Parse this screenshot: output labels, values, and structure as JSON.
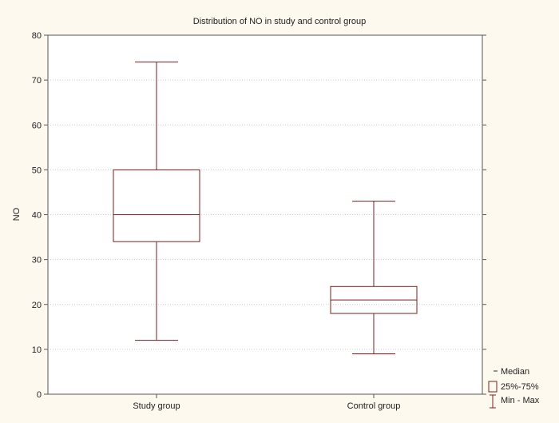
{
  "chart_data": {
    "type": "boxplot",
    "title": "Distribution of NO in study and control group",
    "xlabel": "",
    "ylabel": "NO",
    "ylim": [
      0,
      80
    ],
    "yticks": [
      0,
      10,
      20,
      30,
      40,
      50,
      60,
      70,
      80
    ],
    "categories": [
      "Study group",
      "Control group"
    ],
    "boxes": [
      {
        "category": "Study group",
        "min": 12,
        "q1": 34,
        "median": 40,
        "q3": 50,
        "max": 74
      },
      {
        "category": "Control group",
        "min": 9,
        "q1": 18,
        "median": 21,
        "q3": 24,
        "max": 43
      }
    ],
    "legend": {
      "position": "bottom-right",
      "items": [
        {
          "symbol": "median",
          "label": "Median"
        },
        {
          "symbol": "box",
          "label": "25%-75%"
        },
        {
          "symbol": "whisker",
          "label": "Min - Max"
        }
      ]
    },
    "colors": {
      "box_stroke": "#7a1f1f",
      "background": "#fdf9ef",
      "plot_background": "#ffffff",
      "grid": "#cccccc"
    },
    "grid": true
  }
}
